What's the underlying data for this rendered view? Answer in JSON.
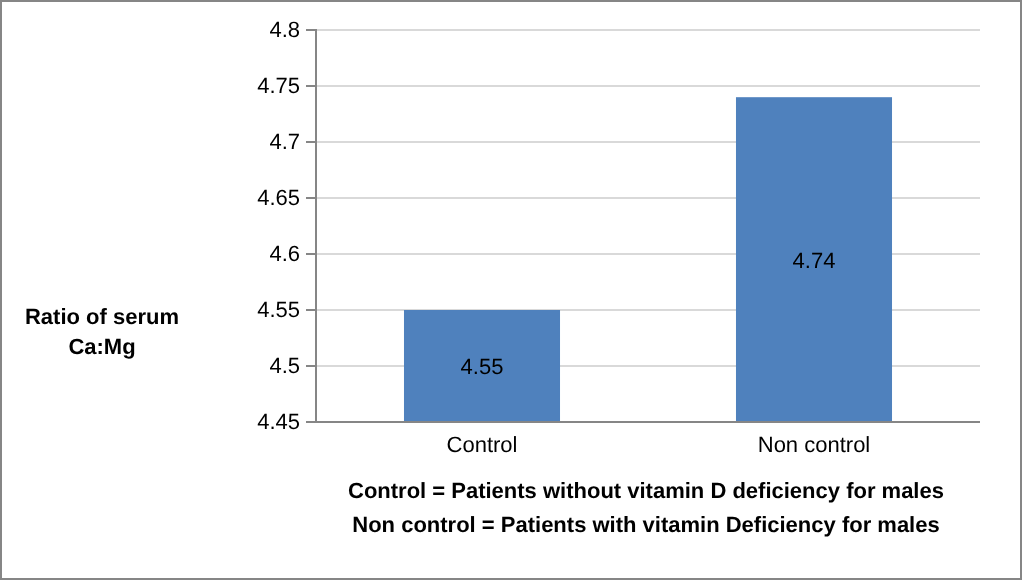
{
  "chart_data": {
    "type": "bar",
    "ylabel": "Ratio of serum Ca:Mg",
    "categories": [
      "Control",
      "Non control"
    ],
    "values": [
      4.55,
      4.74
    ],
    "color": "#4f81bd",
    "ylim": [
      4.45,
      4.8
    ],
    "yticks": [
      4.45,
      4.5,
      4.55,
      4.6,
      4.65,
      4.7,
      4.75,
      4.8
    ],
    "grid": "y",
    "data_labels": true,
    "annotations": [
      "Control = Patients without vitamin D deficiency for males",
      "Non control = Patients with vitamin Deficiency for males"
    ]
  }
}
